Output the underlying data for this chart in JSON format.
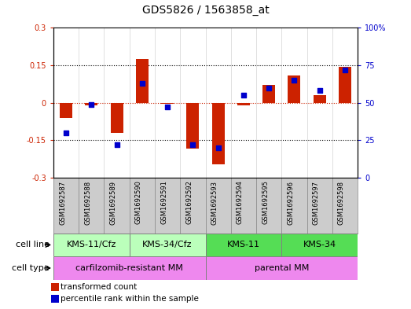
{
  "title": "GDS5826 / 1563858_at",
  "samples": [
    "GSM1692587",
    "GSM1692588",
    "GSM1692589",
    "GSM1692590",
    "GSM1692591",
    "GSM1692592",
    "GSM1692593",
    "GSM1692594",
    "GSM1692595",
    "GSM1692596",
    "GSM1692597",
    "GSM1692598"
  ],
  "transformed_count": [
    -0.06,
    -0.01,
    -0.12,
    0.175,
    -0.005,
    -0.185,
    -0.245,
    -0.01,
    0.07,
    0.11,
    0.03,
    0.145
  ],
  "percentile_rank": [
    30,
    49,
    22,
    63,
    47,
    22,
    20,
    55,
    60,
    65,
    58,
    72
  ],
  "ylim_left": [
    -0.3,
    0.3
  ],
  "ylim_right": [
    0,
    100
  ],
  "yticks_left": [
    -0.3,
    -0.15,
    0,
    0.15,
    0.3
  ],
  "yticks_right": [
    0,
    25,
    50,
    75,
    100
  ],
  "bar_color": "#cc2200",
  "dot_color": "#0000cc",
  "cell_line_groups": [
    {
      "label": "KMS-11/Cfz",
      "start": 0,
      "end": 2,
      "color": "#bbffbb"
    },
    {
      "label": "KMS-34/Cfz",
      "start": 3,
      "end": 5,
      "color": "#bbffbb"
    },
    {
      "label": "KMS-11",
      "start": 6,
      "end": 8,
      "color": "#55dd55"
    },
    {
      "label": "KMS-34",
      "start": 9,
      "end": 11,
      "color": "#55dd55"
    }
  ],
  "cell_type_groups": [
    {
      "label": "carfilzomib-resistant MM",
      "start": 0,
      "end": 5,
      "color": "#ee88ee"
    },
    {
      "label": "parental MM",
      "start": 6,
      "end": 11,
      "color": "#ee88ee"
    }
  ],
  "cell_line_label": "cell line",
  "cell_type_label": "cell type",
  "legend_items": [
    {
      "label": "transformed count",
      "color": "#cc2200"
    },
    {
      "label": "percentile rank within the sample",
      "color": "#0000cc"
    }
  ],
  "sample_bg_color": "#cccccc",
  "bar_width": 0.5
}
